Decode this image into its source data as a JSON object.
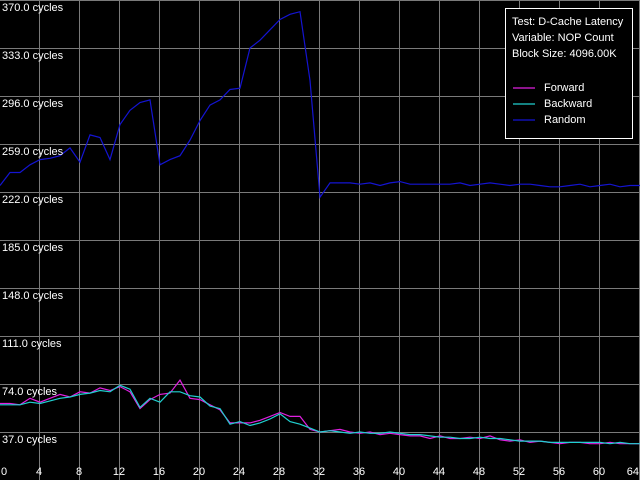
{
  "chart_data": {
    "type": "line",
    "annotations": [
      "Test: D-Cache Latency",
      "Variable: NOP Count",
      "Block Size: 4096.00K"
    ],
    "legend": "upper right",
    "grid": true,
    "background": "#000000",
    "xlim": [
      0,
      64
    ],
    "xticks": [
      0,
      4,
      8,
      12,
      16,
      20,
      24,
      28,
      32,
      36,
      40,
      44,
      48,
      52,
      56,
      60,
      64
    ],
    "ylim": [
      0,
      370
    ],
    "yticks": [
      {
        "value": 37,
        "label": "37.0 cycles"
      },
      {
        "value": 74,
        "label": "74.0 cycles"
      },
      {
        "value": 111,
        "label": "111.0 cycles"
      },
      {
        "value": 148,
        "label": "148.0 cycles"
      },
      {
        "value": 185,
        "label": "185.0 cycles"
      },
      {
        "value": 222,
        "label": "222.0 cycles"
      },
      {
        "value": 259,
        "label": "259.0 cycles"
      },
      {
        "value": 296,
        "label": "296.0 cycles"
      },
      {
        "value": 333,
        "label": "333.0 cycles"
      },
      {
        "value": 370,
        "label": "370.0 cycles"
      }
    ],
    "x": [
      0,
      1,
      2,
      3,
      4,
      5,
      6,
      7,
      8,
      9,
      10,
      11,
      12,
      13,
      14,
      15,
      16,
      17,
      18,
      19,
      20,
      21,
      22,
      23,
      24,
      25,
      26,
      27,
      28,
      29,
      30,
      31,
      32,
      33,
      34,
      35,
      36,
      37,
      38,
      39,
      40,
      41,
      42,
      43,
      44,
      45,
      46,
      47,
      48,
      49,
      50,
      51,
      52,
      53,
      54,
      55,
      56,
      57,
      58,
      59,
      60,
      61,
      62,
      63,
      64
    ],
    "series": [
      {
        "name": "Forward",
        "color": "#e020e0",
        "values": [
          59,
          59,
          58,
          63,
          60,
          63,
          66,
          64,
          68,
          67,
          71,
          69,
          72,
          68,
          55,
          62,
          66,
          67,
          77,
          63,
          62,
          58,
          54,
          44,
          44,
          44,
          46,
          49,
          52,
          49,
          49,
          39,
          37,
          38,
          39,
          37,
          36,
          37,
          35,
          36,
          35,
          34,
          34,
          32,
          34,
          32,
          32,
          33,
          32,
          34,
          31,
          30,
          31,
          29,
          30,
          29,
          28,
          29,
          29,
          28,
          28,
          29,
          28,
          28,
          28
        ]
      },
      {
        "name": "Backward",
        "color": "#20d0d0",
        "values": [
          58,
          58,
          58,
          60,
          59,
          61,
          63,
          64,
          66,
          67,
          69,
          68,
          73,
          70,
          56,
          63,
          60,
          68,
          68,
          65,
          64,
          57,
          55,
          43,
          45,
          42,
          44,
          47,
          51,
          45,
          43,
          40,
          37,
          38,
          37,
          36,
          37,
          36,
          36,
          37,
          36,
          35,
          35,
          34,
          33,
          33,
          32,
          32,
          33,
          32,
          32,
          31,
          30,
          30,
          30,
          29,
          29,
          29,
          29,
          29,
          29,
          28,
          29,
          28,
          28
        ]
      },
      {
        "name": "Random",
        "color": "#1414d2",
        "values": [
          227,
          237,
          237,
          243,
          247,
          248,
          250,
          256,
          245,
          266,
          264,
          247,
          274,
          285,
          291,
          293,
          243,
          247,
          250,
          262,
          277,
          289,
          293,
          301,
          302,
          333,
          339,
          347,
          355,
          359,
          361,
          308,
          218,
          229,
          229,
          229,
          228,
          229,
          227,
          229,
          230,
          228,
          228,
          228,
          228,
          228,
          229,
          227,
          228,
          229,
          228,
          227,
          228,
          228,
          227,
          226,
          226,
          227,
          228,
          226,
          227,
          228,
          226,
          227,
          227
        ]
      }
    ]
  }
}
